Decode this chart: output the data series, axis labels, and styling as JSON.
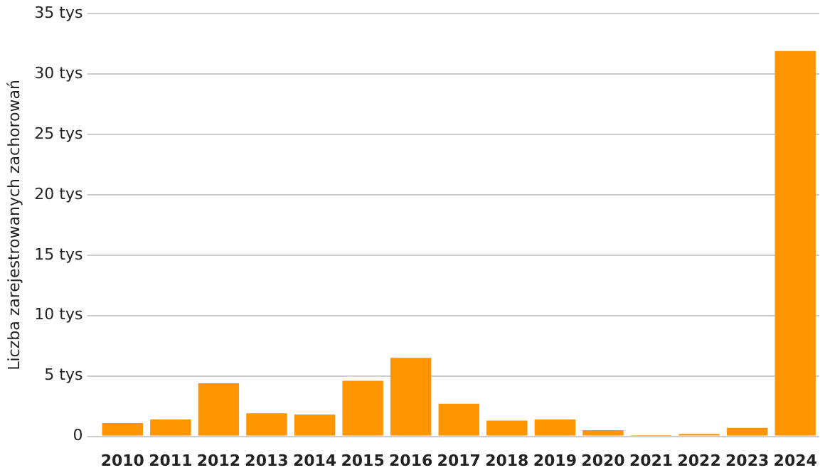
{
  "chart_data": {
    "type": "bar",
    "ylabel": "Liczba zarejestrowanych zachorowań",
    "categories": [
      "2010",
      "2011",
      "2012",
      "2013",
      "2014",
      "2015",
      "2016",
      "2017",
      "2018",
      "2019",
      "2020",
      "2021",
      "2022",
      "2023",
      "2024"
    ],
    "values": [
      1.1,
      1.4,
      4.4,
      1.9,
      1.8,
      4.6,
      6.5,
      2.7,
      1.3,
      1.4,
      0.5,
      0.1,
      0.2,
      0.7,
      31.9
    ],
    "color": "#ff9500",
    "ylim": [
      0,
      35
    ],
    "yticks": [
      0,
      {
        "value": 5,
        "label": "5 tys"
      },
      {
        "value": 10,
        "label": "10 tys"
      },
      {
        "value": 15,
        "label": "15 tys"
      },
      {
        "value": 20,
        "label": "20 tys"
      },
      {
        "value": 25,
        "label": "25 tys"
      },
      {
        "value": 30,
        "label": "30 tys"
      },
      {
        "value": 35,
        "label": "35 tys"
      }
    ],
    "grid": "y"
  }
}
